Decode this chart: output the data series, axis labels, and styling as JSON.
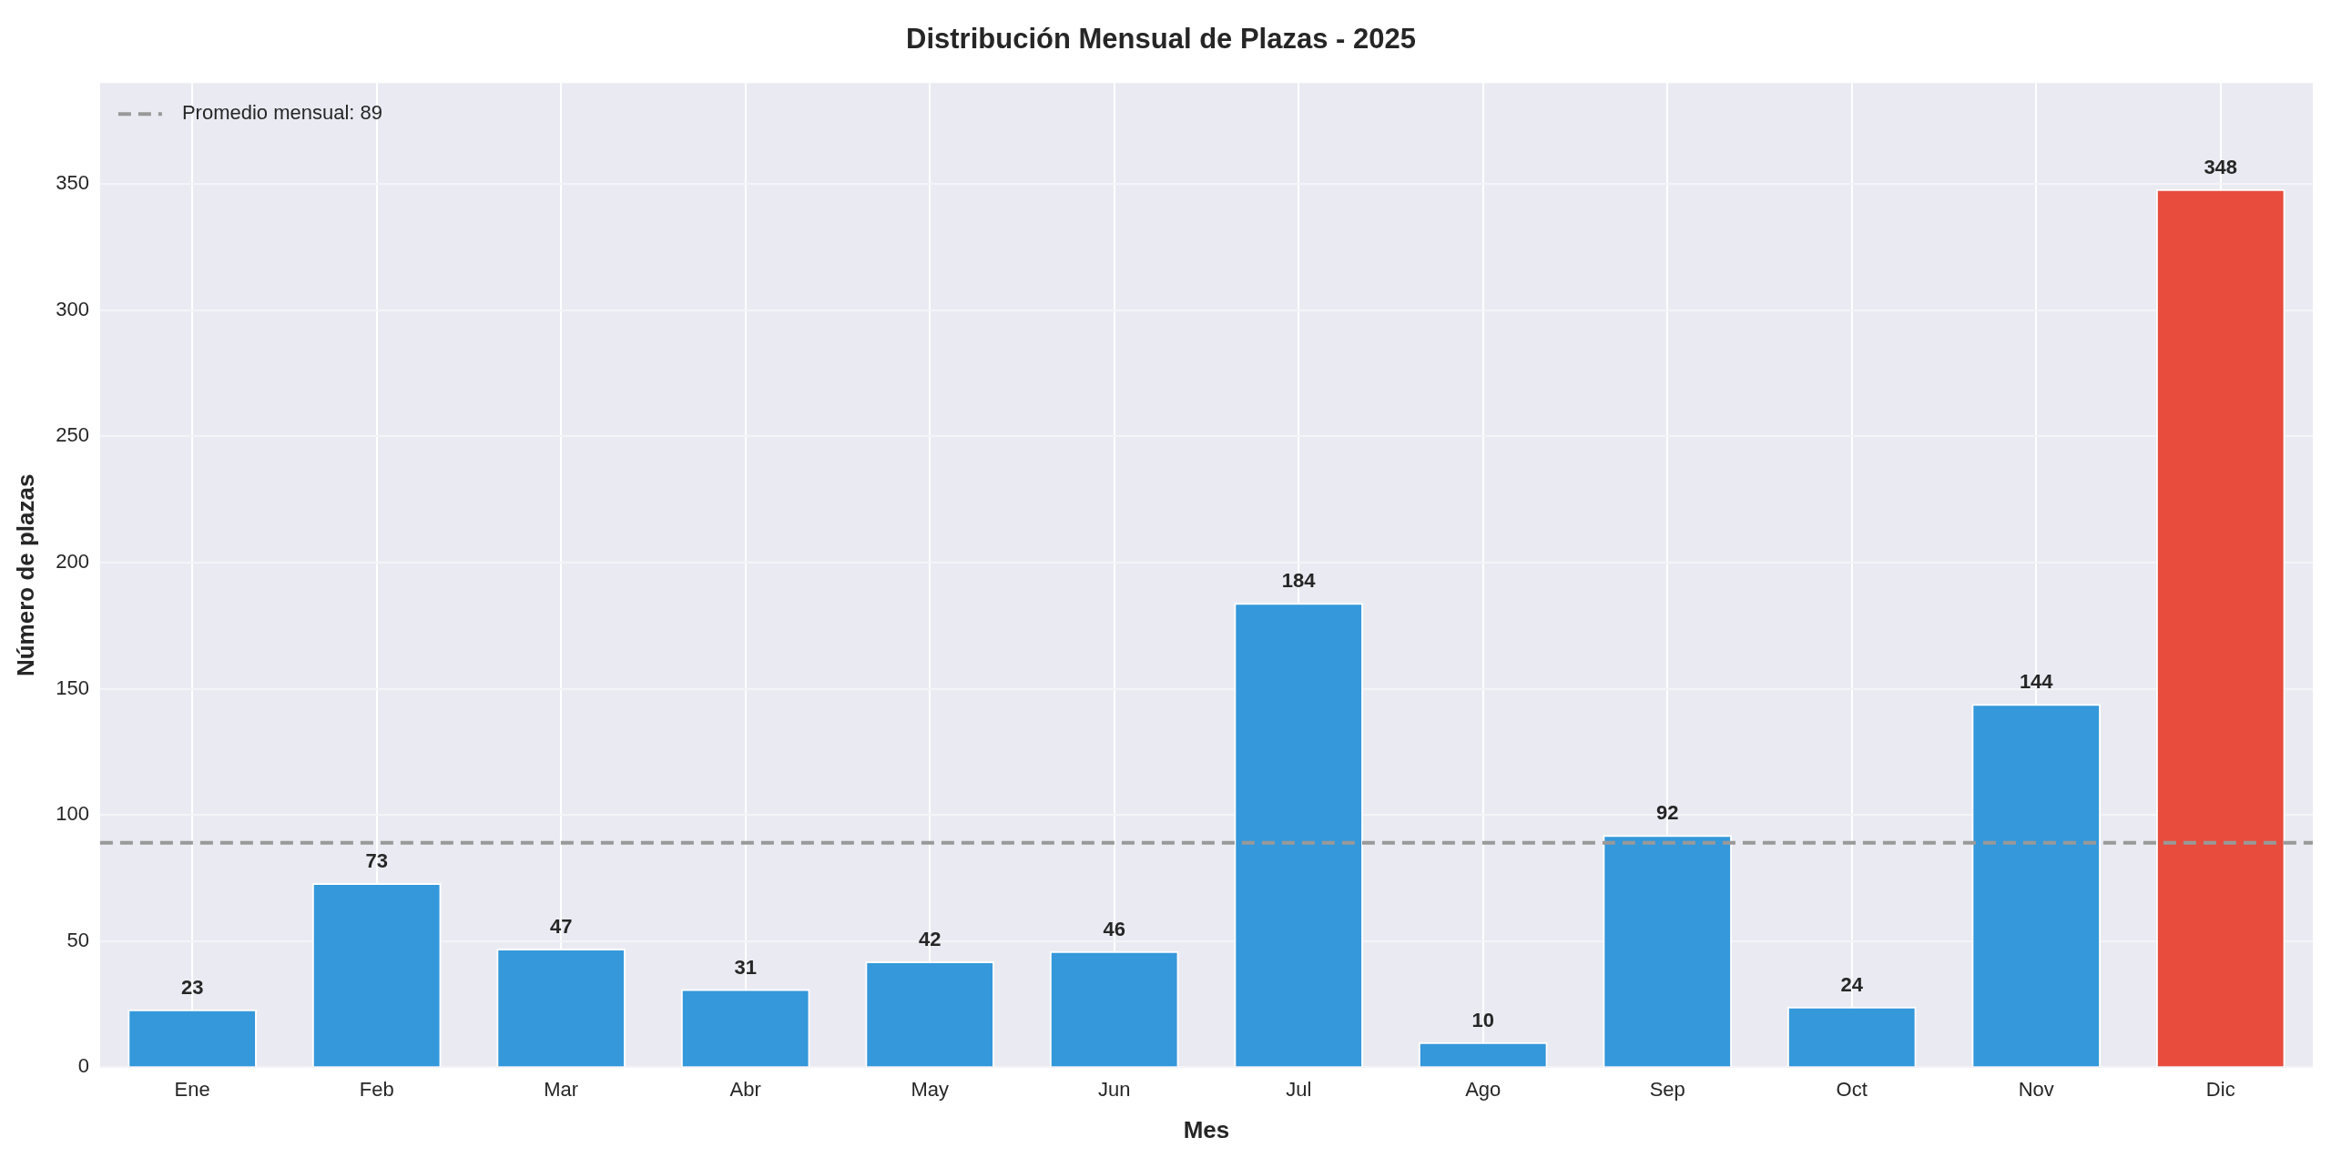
{
  "chart_data": {
    "type": "bar",
    "title": "Distribución Mensual de Plazas - 2025",
    "xlabel": "Mes",
    "ylabel": "Número de plazas",
    "categories": [
      "Ene",
      "Feb",
      "Mar",
      "Abr",
      "May",
      "Jun",
      "Jul",
      "Ago",
      "Sep",
      "Oct",
      "Nov",
      "Dic"
    ],
    "values": [
      23,
      73,
      47,
      31,
      42,
      46,
      184,
      10,
      92,
      24,
      144,
      348
    ],
    "colors": [
      "#3498db",
      "#3498db",
      "#3498db",
      "#3498db",
      "#3498db",
      "#3498db",
      "#3498db",
      "#3498db",
      "#3498db",
      "#3498db",
      "#3498db",
      "#e74c3c"
    ],
    "ylim": [
      0,
      390
    ],
    "yticks": [
      0,
      50,
      100,
      150,
      200,
      250,
      300,
      350
    ],
    "ref_lines": [
      {
        "axis": "y",
        "value": 89,
        "label": "Promedio mensual: 89",
        "color": "#999999",
        "line_style": "dashed"
      }
    ],
    "data_labels": true,
    "grid": true,
    "legend": "top left"
  }
}
